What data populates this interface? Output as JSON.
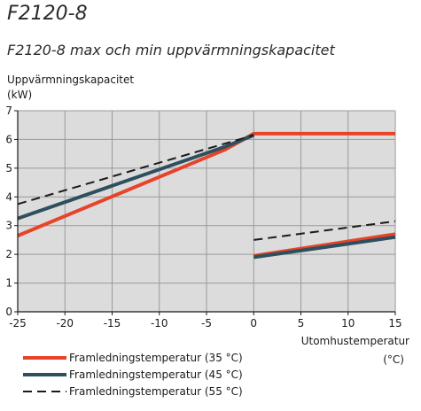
{
  "header": {
    "title": "F2120-8",
    "subtitle": "F2120-8 max och min uppvärmningskapacitet"
  },
  "chart_data": {
    "type": "line",
    "ylabel_line1": "Uppvärmningskapacitet",
    "ylabel_line2": "(kW)",
    "xlabel_line1": "Utomhustemperatur",
    "xlabel_line2": "(°C)",
    "xlim": [
      -25,
      15
    ],
    "ylim": [
      0,
      7
    ],
    "xticks": [
      -25,
      -20,
      -15,
      -10,
      -5,
      0,
      5,
      10,
      15
    ],
    "yticks": [
      0,
      1,
      2,
      3,
      4,
      5,
      6,
      7
    ],
    "grid": true,
    "legend_position": "bottom-left",
    "series": [
      {
        "name": "Framledningstemperatur (35 °C)",
        "color": "#e8432a",
        "style": "solid",
        "segments": [
          [
            [
              -25,
              2.65
            ],
            [
              -3,
              5.65
            ],
            [
              0,
              6.2
            ],
            [
              15,
              6.2
            ]
          ],
          [
            [
              0,
              1.95
            ],
            [
              15,
              2.7
            ]
          ]
        ]
      },
      {
        "name": "Framledningstemperatur (45 °C)",
        "color": "#2e4f5e",
        "style": "solid",
        "segments": [
          [
            [
              -25,
              3.25
            ],
            [
              -3,
              5.75
            ],
            [
              0,
              6.15
            ]
          ],
          [
            [
              0,
              1.9
            ],
            [
              15,
              2.6
            ]
          ]
        ]
      },
      {
        "name": "Framledningstemperatur (55 °C)",
        "color": "#1a1a1a",
        "style": "dashed",
        "segments": [
          [
            [
              -25,
              3.75
            ],
            [
              0,
              6.15
            ]
          ],
          [
            [
              0,
              2.5
            ],
            [
              15,
              3.15
            ]
          ]
        ]
      }
    ]
  }
}
